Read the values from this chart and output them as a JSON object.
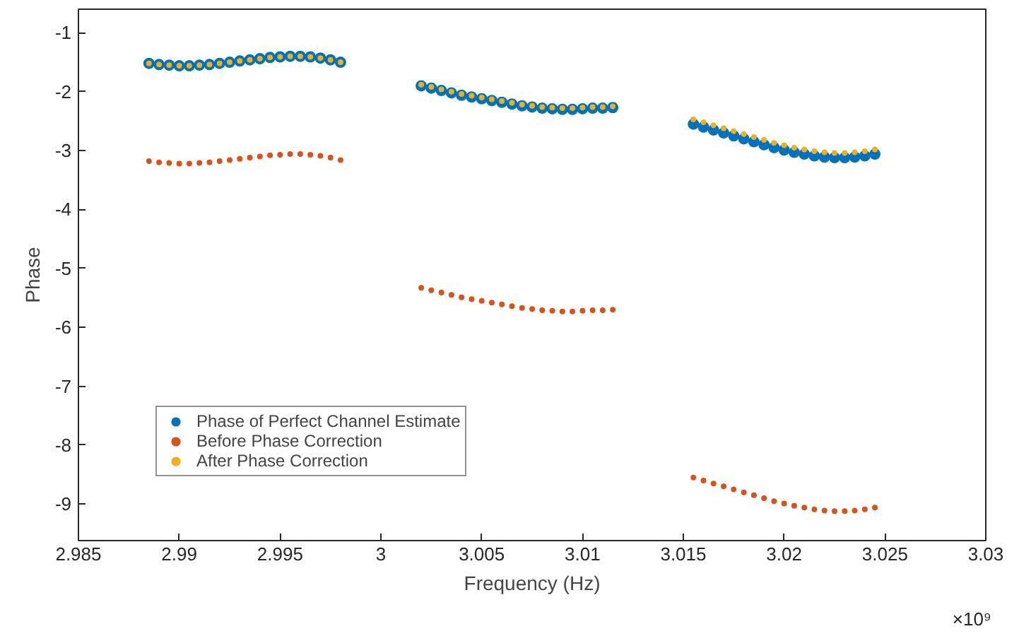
{
  "chart_data": {
    "type": "scatter",
    "xlabel": "Frequency (Hz)",
    "ylabel": "Phase",
    "x": [
      2.9885,
      2.989,
      2.9895,
      2.99,
      2.9905,
      2.991,
      2.9915,
      2.992,
      2.9925,
      2.993,
      2.9935,
      2.994,
      2.9945,
      2.995,
      2.9955,
      2.996,
      2.9965,
      2.997,
      2.9975,
      2.998,
      3.002,
      3.0025,
      3.003,
      3.0035,
      3.004,
      3.0045,
      3.005,
      3.0055,
      3.006,
      3.0065,
      3.007,
      3.0075,
      3.008,
      3.0085,
      3.009,
      3.0095,
      3.01,
      3.0105,
      3.011,
      3.0115,
      3.0155,
      3.016,
      3.0165,
      3.017,
      3.0175,
      3.018,
      3.0185,
      3.019,
      3.0195,
      3.02,
      3.0205,
      3.021,
      3.0215,
      3.022,
      3.0225,
      3.023,
      3.0235,
      3.024,
      3.0245
    ],
    "series": [
      {
        "name": "Phase of Perfect Channel Estimate",
        "color": "#0072bd",
        "values": [
          -1.52,
          -1.54,
          -1.55,
          -1.56,
          -1.56,
          -1.55,
          -1.54,
          -1.52,
          -1.5,
          -1.48,
          -1.46,
          -1.44,
          -1.42,
          -1.41,
          -1.4,
          -1.4,
          -1.41,
          -1.43,
          -1.46,
          -1.5,
          -1.9,
          -1.94,
          -1.98,
          -2.02,
          -2.06,
          -2.09,
          -2.12,
          -2.15,
          -2.18,
          -2.21,
          -2.24,
          -2.26,
          -2.28,
          -2.29,
          -2.3,
          -2.3,
          -2.29,
          -2.28,
          -2.28,
          -2.27,
          -2.55,
          -2.6,
          -2.65,
          -2.7,
          -2.75,
          -2.8,
          -2.85,
          -2.9,
          -2.95,
          -2.99,
          -3.03,
          -3.06,
          -3.09,
          -3.11,
          -3.12,
          -3.12,
          -3.11,
          -3.09,
          -3.06
        ]
      },
      {
        "name": "Before Phase Correction",
        "color": "#d95319",
        "values": [
          -3.18,
          -3.2,
          -3.21,
          -3.22,
          -3.22,
          -3.21,
          -3.2,
          -3.18,
          -3.16,
          -3.14,
          -3.12,
          -3.1,
          -3.08,
          -3.07,
          -3.06,
          -3.06,
          -3.07,
          -3.09,
          -3.12,
          -3.16,
          -5.33,
          -5.37,
          -5.41,
          -5.45,
          -5.49,
          -5.52,
          -5.55,
          -5.58,
          -5.61,
          -5.64,
          -5.67,
          -5.69,
          -5.71,
          -5.72,
          -5.73,
          -5.73,
          -5.72,
          -5.71,
          -5.71,
          -5.7,
          -8.55,
          -8.6,
          -8.65,
          -8.7,
          -8.75,
          -8.8,
          -8.85,
          -8.9,
          -8.95,
          -8.99,
          -9.03,
          -9.06,
          -9.09,
          -9.11,
          -9.12,
          -9.12,
          -9.11,
          -9.09,
          -9.06
        ]
      },
      {
        "name": "After Phase Correction",
        "color": "#edb120",
        "values": [
          -1.52,
          -1.54,
          -1.55,
          -1.56,
          -1.56,
          -1.55,
          -1.54,
          -1.52,
          -1.5,
          -1.48,
          -1.46,
          -1.44,
          -1.42,
          -1.41,
          -1.4,
          -1.4,
          -1.41,
          -1.43,
          -1.46,
          -1.5,
          -1.88,
          -1.92,
          -1.96,
          -2.0,
          -2.04,
          -2.07,
          -2.1,
          -2.13,
          -2.16,
          -2.19,
          -2.22,
          -2.24,
          -2.26,
          -2.27,
          -2.28,
          -2.28,
          -2.27,
          -2.26,
          -2.26,
          -2.25,
          -2.47,
          -2.52,
          -2.57,
          -2.62,
          -2.67,
          -2.72,
          -2.77,
          -2.82,
          -2.87,
          -2.91,
          -2.95,
          -2.98,
          -3.01,
          -3.03,
          -3.04,
          -3.04,
          -3.03,
          -3.01,
          -2.98
        ]
      }
    ],
    "xlim": [
      2.985,
      3.03
    ],
    "xticks": [
      2.985,
      2.99,
      2.995,
      3,
      3.005,
      3.01,
      3.015,
      3.02,
      3.025,
      3.03
    ],
    "ylim": [
      -9.62,
      -0.6
    ],
    "yticks": [
      -9,
      -8,
      -7,
      -6,
      -5,
      -4,
      -3,
      -2,
      -1
    ],
    "annotations": [
      "×10⁹"
    ],
    "legend": "bottom left",
    "grid": false,
    "marker": "circle"
  }
}
